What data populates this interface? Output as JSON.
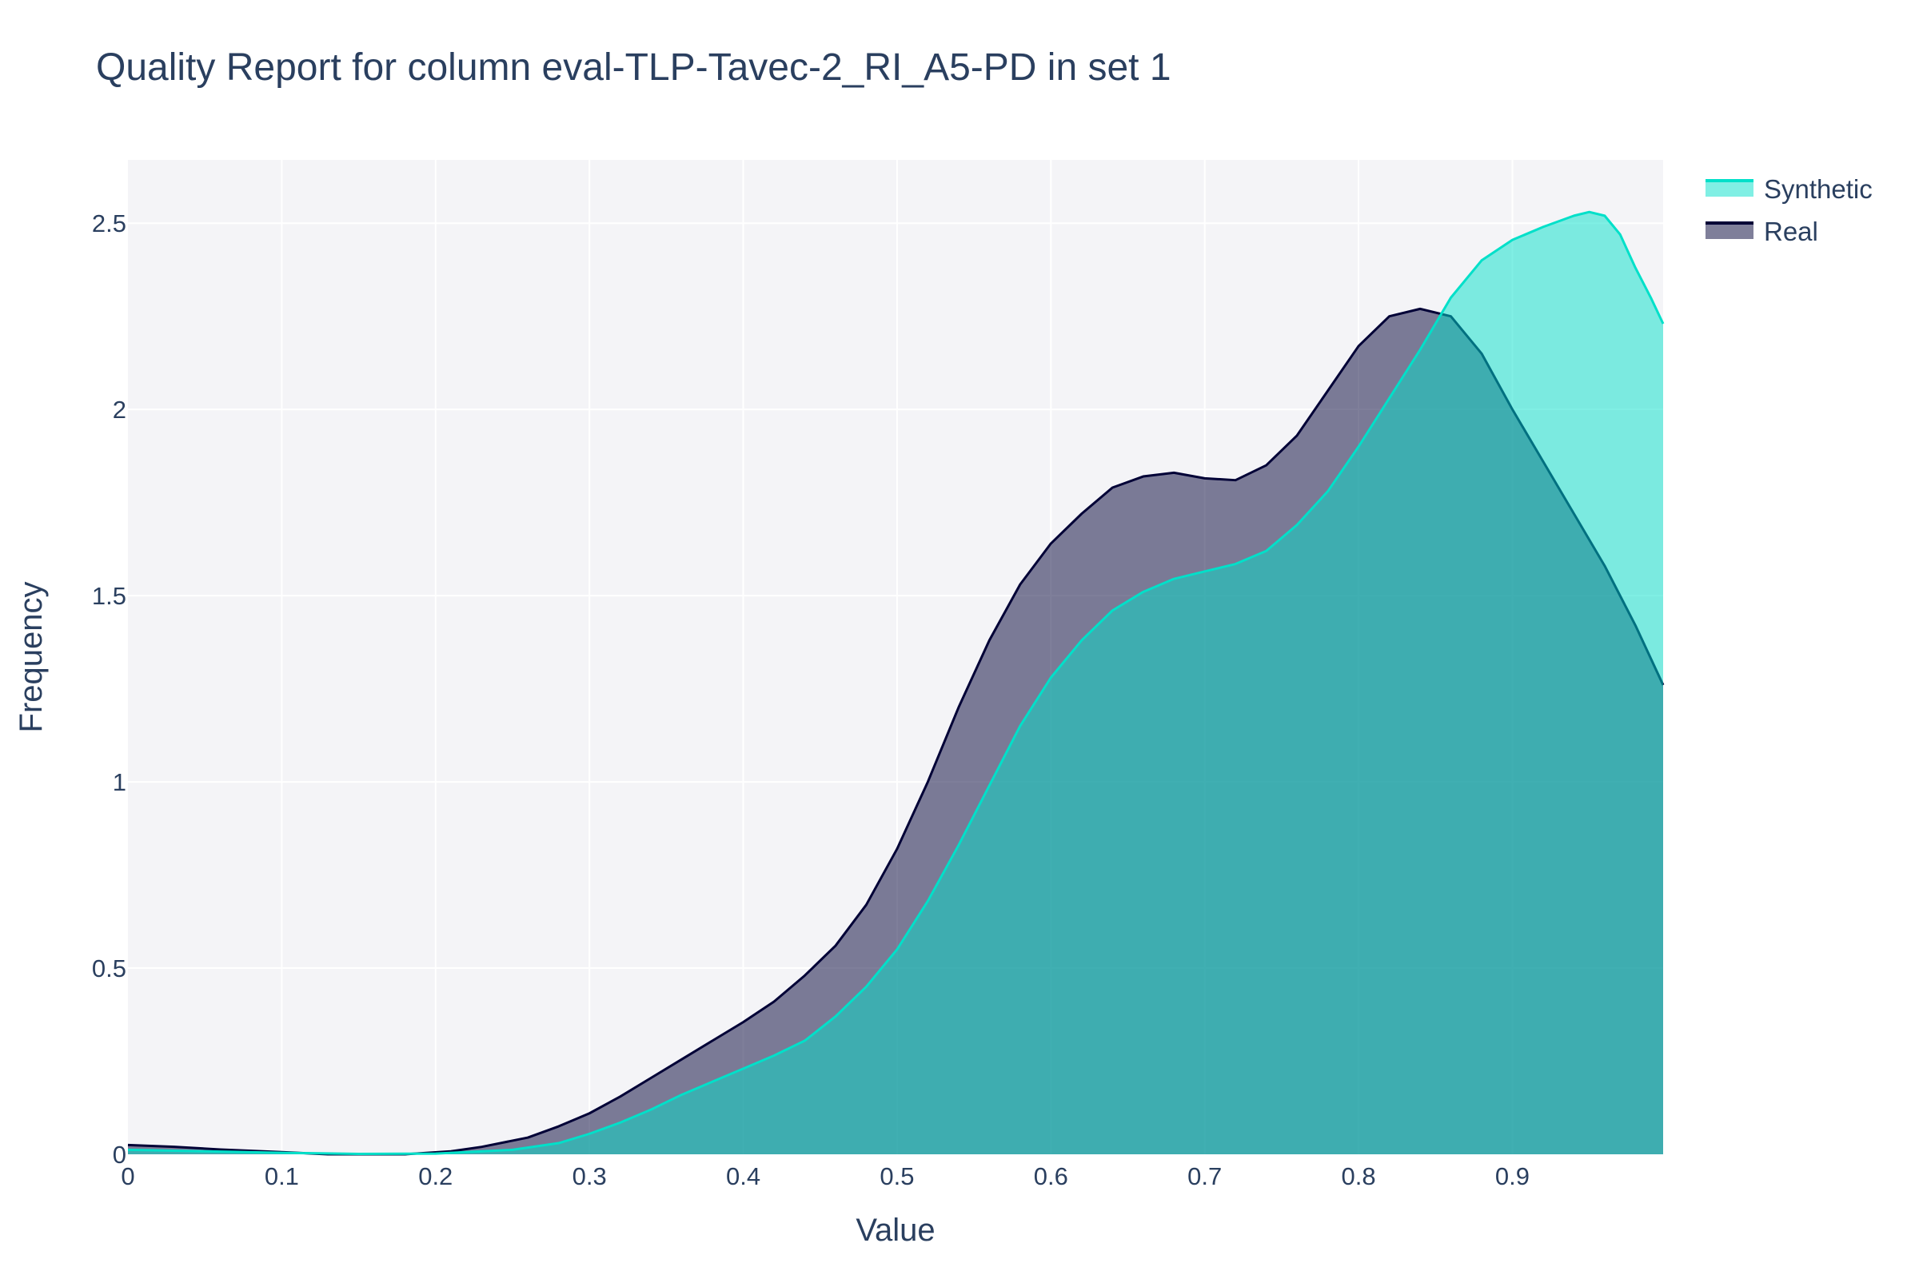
{
  "chart_data": {
    "type": "area",
    "title": "Quality Report for column eval-TLP-Tavec-2_RI_A5-PD in set 1",
    "xlabel": "Value",
    "ylabel": "Frequency",
    "xlim": [
      0,
      0.998
    ],
    "ylim": [
      0,
      2.67
    ],
    "grid": true,
    "legend_position": "top-right",
    "x_ticks": [
      0,
      0.1,
      0.2,
      0.3,
      0.4,
      0.5,
      0.6,
      0.7,
      0.8,
      0.9
    ],
    "x_tick_labels": [
      "0",
      "0.1",
      "0.2",
      "0.3",
      "0.4",
      "0.5",
      "0.6",
      "0.7",
      "0.8",
      "0.9"
    ],
    "y_ticks": [
      0,
      0.5,
      1,
      1.5,
      2,
      2.5
    ],
    "y_tick_labels": [
      "0",
      "0.5",
      "1",
      "1.5",
      "2",
      "2.5"
    ],
    "series": [
      {
        "name": "Real",
        "color": "#000036",
        "fill": "rgba(0,0,54,0.5)",
        "x": [
          0.0,
          0.03,
          0.06,
          0.1,
          0.13,
          0.16,
          0.18,
          0.21,
          0.23,
          0.26,
          0.28,
          0.3,
          0.32,
          0.34,
          0.36,
          0.38,
          0.4,
          0.42,
          0.44,
          0.46,
          0.48,
          0.5,
          0.52,
          0.54,
          0.56,
          0.58,
          0.6,
          0.62,
          0.64,
          0.66,
          0.68,
          0.7,
          0.72,
          0.74,
          0.76,
          0.78,
          0.8,
          0.82,
          0.84,
          0.86,
          0.88,
          0.9,
          0.92,
          0.94,
          0.96,
          0.98,
          0.998
        ],
        "y": [
          0.025,
          0.02,
          0.013,
          0.006,
          0.0,
          0.0,
          0.0,
          0.008,
          0.02,
          0.045,
          0.075,
          0.11,
          0.155,
          0.205,
          0.255,
          0.305,
          0.355,
          0.41,
          0.48,
          0.56,
          0.67,
          0.82,
          1.0,
          1.2,
          1.38,
          1.53,
          1.64,
          1.72,
          1.79,
          1.82,
          1.83,
          1.815,
          1.81,
          1.85,
          1.93,
          2.05,
          2.17,
          2.25,
          2.27,
          2.25,
          2.15,
          2.0,
          1.86,
          1.72,
          1.58,
          1.42,
          1.26
        ]
      },
      {
        "name": "Synthetic",
        "color": "#01e0c9",
        "fill": "rgba(1,224,201,0.5)",
        "x": [
          0.0,
          0.05,
          0.1,
          0.15,
          0.2,
          0.25,
          0.28,
          0.3,
          0.32,
          0.34,
          0.36,
          0.38,
          0.4,
          0.42,
          0.44,
          0.46,
          0.48,
          0.5,
          0.52,
          0.54,
          0.56,
          0.58,
          0.6,
          0.62,
          0.64,
          0.66,
          0.68,
          0.7,
          0.72,
          0.74,
          0.76,
          0.78,
          0.8,
          0.82,
          0.84,
          0.86,
          0.88,
          0.9,
          0.92,
          0.94,
          0.95,
          0.96,
          0.97,
          0.98,
          0.99,
          0.998
        ],
        "y": [
          0.012,
          0.008,
          0.004,
          0.001,
          0.002,
          0.012,
          0.03,
          0.055,
          0.085,
          0.12,
          0.16,
          0.195,
          0.23,
          0.265,
          0.305,
          0.37,
          0.45,
          0.55,
          0.68,
          0.83,
          0.99,
          1.15,
          1.28,
          1.38,
          1.46,
          1.51,
          1.545,
          1.565,
          1.585,
          1.62,
          1.69,
          1.78,
          1.9,
          2.03,
          2.16,
          2.3,
          2.4,
          2.455,
          2.49,
          2.52,
          2.53,
          2.52,
          2.47,
          2.38,
          2.3,
          2.23
        ]
      }
    ]
  }
}
